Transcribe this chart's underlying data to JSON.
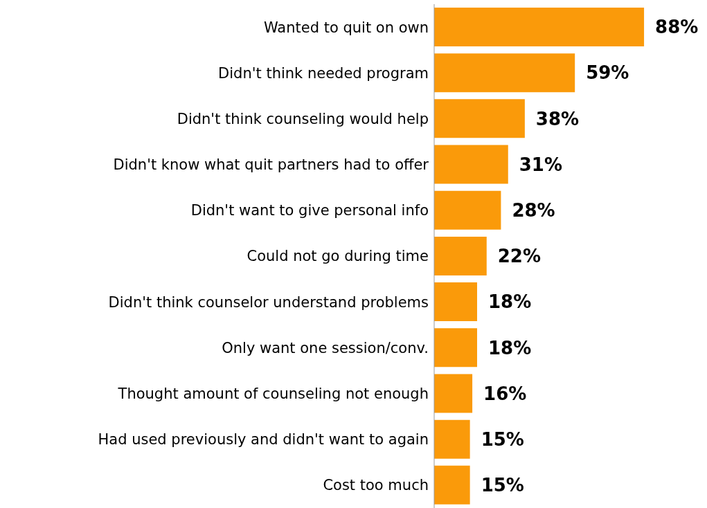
{
  "chart_data": {
    "type": "bar",
    "orientation": "horizontal",
    "categories": [
      "Wanted to quit on own",
      "Didn't think needed program",
      "Didn't think counseling would help",
      "Didn't know what quit partners had to offer",
      "Didn't want to give personal info",
      "Could not go during time",
      "Didn't think counselor understand problems",
      "Only want one session/conv.",
      "Thought amount of counseling not enough",
      "Had used previously and didn't want to again",
      "Cost too much"
    ],
    "values": [
      88,
      59,
      38,
      31,
      28,
      22,
      18,
      18,
      16,
      15,
      15
    ],
    "value_labels": [
      "88%",
      "59%",
      "38%",
      "31%",
      "28%",
      "22%",
      "18%",
      "18%",
      "16%",
      "15%",
      "15%"
    ],
    "color": "#fa9a0a",
    "grid": false,
    "legend": false
  }
}
